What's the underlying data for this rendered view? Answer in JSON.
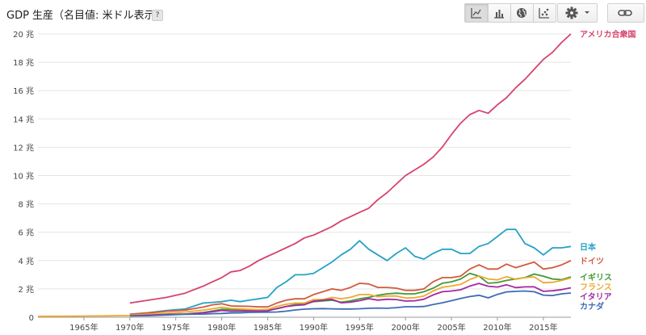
{
  "header": {
    "title": "GDP 生産（名目値: 米ドル表示）",
    "help": "?",
    "view_buttons": [
      {
        "name": "line-chart-view-button",
        "icon": "line-chart-icon",
        "active": true
      },
      {
        "name": "bar-chart-view-button",
        "icon": "bar-chart-icon",
        "active": false
      },
      {
        "name": "map-view-button",
        "icon": "globe-icon",
        "active": false
      },
      {
        "name": "scatter-view-button",
        "icon": "scatter-plot-icon",
        "active": false
      }
    ],
    "settings_icon": "gear-icon",
    "link_icon": "link-icon"
  },
  "chart_data": {
    "type": "line",
    "title": "GDP 生産（名目値: 米ドル表示）",
    "ylim": [
      0,
      20
    ],
    "xlim": [
      1960,
      2018
    ],
    "yticks": [
      0,
      2,
      4,
      6,
      8,
      10,
      12,
      14,
      16,
      18,
      20
    ],
    "ytick_labels": [
      "0",
      "2 兆",
      "4 兆",
      "6 兆",
      "8 兆",
      "10 兆",
      "12 兆",
      "14 兆",
      "16 兆",
      "18 兆",
      "20 兆"
    ],
    "xticks": [
      1965,
      1970,
      1975,
      1980,
      1985,
      1990,
      1995,
      2000,
      2005,
      2010,
      2015
    ],
    "xtick_labels": [
      "1965年",
      "1970年",
      "1975年",
      "1980年",
      "1985年",
      "1990年",
      "1995年",
      "2000年",
      "2005年",
      "2010年",
      "2015年"
    ],
    "grid": "horizontal",
    "legend": "right",
    "series": [
      {
        "name": "アメリカ合衆国",
        "color": "#d6446c",
        "x": [
          1970,
          1972,
          1974,
          1976,
          1978,
          1979,
          1980,
          1981,
          1982,
          1983,
          1984,
          1985,
          1986,
          1987,
          1988,
          1989,
          1990,
          1991,
          1992,
          1993,
          1994,
          1995,
          1996,
          1997,
          1998,
          1999,
          2000,
          2001,
          2002,
          2003,
          2004,
          2005,
          2006,
          2007,
          2008,
          2009,
          2010,
          2011,
          2012,
          2013,
          2014,
          2015,
          2016,
          2017,
          2018
        ],
        "y": [
          1.0,
          1.2,
          1.4,
          1.7,
          2.2,
          2.5,
          2.8,
          3.2,
          3.3,
          3.6,
          4.0,
          4.3,
          4.6,
          4.9,
          5.2,
          5.6,
          5.8,
          6.1,
          6.4,
          6.8,
          7.1,
          7.4,
          7.7,
          8.3,
          8.8,
          9.4,
          10.0,
          10.4,
          10.8,
          11.3,
          12.0,
          12.9,
          13.7,
          14.3,
          14.6,
          14.4,
          15.0,
          15.5,
          16.2,
          16.8,
          17.5,
          18.2,
          18.7,
          19.4,
          20.0
        ]
      },
      {
        "name": "日本",
        "color": "#25a3c3",
        "x": [
          1970,
          1972,
          1974,
          1976,
          1978,
          1979,
          1980,
          1981,
          1982,
          1983,
          1984,
          1985,
          1986,
          1987,
          1988,
          1989,
          1990,
          1991,
          1992,
          1993,
          1994,
          1995,
          1996,
          1997,
          1998,
          1999,
          2000,
          2001,
          2002,
          2003,
          2004,
          2005,
          2006,
          2007,
          2008,
          2009,
          2010,
          2011,
          2012,
          2013,
          2014,
          2015,
          2016,
          2017,
          2018
        ],
        "y": [
          0.21,
          0.32,
          0.48,
          0.58,
          1.0,
          1.05,
          1.1,
          1.2,
          1.1,
          1.2,
          1.3,
          1.4,
          2.1,
          2.5,
          3.0,
          3.0,
          3.1,
          3.5,
          3.9,
          4.4,
          4.8,
          5.4,
          4.8,
          4.4,
          4.0,
          4.5,
          4.9,
          4.3,
          4.1,
          4.5,
          4.8,
          4.8,
          4.5,
          4.5,
          5.0,
          5.2,
          5.7,
          6.2,
          6.2,
          5.2,
          4.9,
          4.4,
          4.9,
          4.9,
          5.0
        ]
      },
      {
        "name": "ドイツ",
        "color": "#d25a3e",
        "x": [
          1970,
          1972,
          1974,
          1976,
          1978,
          1979,
          1980,
          1981,
          1982,
          1983,
          1984,
          1985,
          1986,
          1987,
          1988,
          1989,
          1990,
          1991,
          1992,
          1993,
          1994,
          1995,
          1996,
          1997,
          1998,
          1999,
          2000,
          2001,
          2002,
          2003,
          2004,
          2005,
          2006,
          2007,
          2008,
          2009,
          2010,
          2011,
          2012,
          2013,
          2014,
          2015,
          2016,
          2017,
          2018
        ],
        "y": [
          0.21,
          0.3,
          0.42,
          0.5,
          0.72,
          0.88,
          0.95,
          0.8,
          0.78,
          0.77,
          0.73,
          0.73,
          1.0,
          1.2,
          1.3,
          1.3,
          1.6,
          1.8,
          2.0,
          1.9,
          2.1,
          2.4,
          2.35,
          2.1,
          2.1,
          2.05,
          1.9,
          1.9,
          2.0,
          2.5,
          2.8,
          2.8,
          2.9,
          3.4,
          3.7,
          3.4,
          3.4,
          3.75,
          3.5,
          3.7,
          3.9,
          3.4,
          3.5,
          3.7,
          4.0
        ]
      },
      {
        "name": "イギリス",
        "color": "#3f9a36",
        "x": [
          1970,
          1972,
          1974,
          1976,
          1978,
          1979,
          1980,
          1981,
          1982,
          1983,
          1984,
          1985,
          1986,
          1987,
          1988,
          1989,
          1990,
          1991,
          1992,
          1993,
          1994,
          1995,
          1996,
          1997,
          1998,
          1999,
          2000,
          2001,
          2002,
          2003,
          2004,
          2005,
          2006,
          2007,
          2008,
          2009,
          2010,
          2011,
          2012,
          2013,
          2014,
          2015,
          2016,
          2017,
          2018
        ],
        "y": [
          0.13,
          0.17,
          0.2,
          0.23,
          0.33,
          0.44,
          0.56,
          0.54,
          0.52,
          0.49,
          0.46,
          0.49,
          0.6,
          0.75,
          0.9,
          0.93,
          1.1,
          1.15,
          1.2,
          1.06,
          1.15,
          1.3,
          1.4,
          1.55,
          1.65,
          1.7,
          1.65,
          1.65,
          1.8,
          2.05,
          2.4,
          2.5,
          2.7,
          3.1,
          2.9,
          2.4,
          2.45,
          2.6,
          2.7,
          2.8,
          3.05,
          2.9,
          2.7,
          2.65,
          2.85
        ]
      },
      {
        "name": "フランス",
        "color": "#f0a830",
        "x": [
          1970,
          1972,
          1974,
          1976,
          1978,
          1979,
          1980,
          1981,
          1982,
          1983,
          1984,
          1985,
          1986,
          1987,
          1988,
          1989,
          1990,
          1991,
          1992,
          1993,
          1994,
          1995,
          1996,
          1997,
          1998,
          1999,
          2000,
          2001,
          2002,
          2003,
          2004,
          2005,
          2006,
          2007,
          2008,
          2009,
          2010,
          2011,
          2012,
          2013,
          2014,
          2015,
          2016,
          2017,
          2018
        ],
        "y": [
          0.15,
          0.22,
          0.28,
          0.37,
          0.5,
          0.6,
          0.7,
          0.62,
          0.59,
          0.56,
          0.53,
          0.55,
          0.77,
          0.91,
          1.0,
          1.0,
          1.25,
          1.25,
          1.4,
          1.3,
          1.4,
          1.6,
          1.6,
          1.45,
          1.5,
          1.5,
          1.36,
          1.38,
          1.5,
          1.85,
          2.12,
          2.2,
          2.32,
          2.66,
          2.92,
          2.7,
          2.64,
          2.86,
          2.68,
          2.8,
          2.85,
          2.44,
          2.47,
          2.6,
          2.78
        ]
      },
      {
        "name": "イタリア",
        "color": "#a32aa0",
        "x": [
          1970,
          1972,
          1974,
          1976,
          1978,
          1979,
          1980,
          1981,
          1982,
          1983,
          1984,
          1985,
          1986,
          1987,
          1988,
          1989,
          1990,
          1991,
          1992,
          1993,
          1994,
          1995,
          1996,
          1997,
          1998,
          1999,
          2000,
          2001,
          2002,
          2003,
          2004,
          2005,
          2006,
          2007,
          2008,
          2009,
          2010,
          2011,
          2012,
          2013,
          2014,
          2015,
          2016,
          2017,
          2018
        ],
        "y": [
          0.11,
          0.14,
          0.2,
          0.22,
          0.32,
          0.39,
          0.48,
          0.43,
          0.43,
          0.44,
          0.44,
          0.45,
          0.62,
          0.76,
          0.83,
          0.88,
          1.14,
          1.2,
          1.27,
          1.02,
          1.06,
          1.17,
          1.31,
          1.21,
          1.27,
          1.25,
          1.14,
          1.16,
          1.27,
          1.57,
          1.8,
          1.85,
          1.94,
          2.2,
          2.39,
          2.19,
          2.13,
          2.29,
          2.09,
          2.14,
          2.15,
          1.83,
          1.87,
          1.95,
          2.08
        ]
      },
      {
        "name": "カナダ",
        "color": "#3f6bb4",
        "x": [
          1970,
          1972,
          1974,
          1976,
          1978,
          1979,
          1980,
          1981,
          1982,
          1983,
          1984,
          1985,
          1986,
          1987,
          1988,
          1989,
          1990,
          1991,
          1992,
          1993,
          1994,
          1995,
          1996,
          1997,
          1998,
          1999,
          2000,
          2001,
          2002,
          2003,
          2004,
          2005,
          2006,
          2007,
          2008,
          2009,
          2010,
          2011,
          2012,
          2013,
          2014,
          2015,
          2016,
          2017,
          2018
        ],
        "y": [
          0.09,
          0.11,
          0.16,
          0.21,
          0.22,
          0.25,
          0.27,
          0.3,
          0.31,
          0.34,
          0.35,
          0.36,
          0.37,
          0.43,
          0.51,
          0.57,
          0.6,
          0.61,
          0.59,
          0.58,
          0.58,
          0.6,
          0.63,
          0.65,
          0.63,
          0.68,
          0.74,
          0.74,
          0.76,
          0.9,
          1.02,
          1.17,
          1.32,
          1.46,
          1.55,
          1.37,
          1.61,
          1.79,
          1.83,
          1.85,
          1.8,
          1.56,
          1.53,
          1.65,
          1.71
        ]
      },
      {
        "name": "",
        "color": "#f0a830",
        "x": [
          1960,
          1962,
          1964,
          1966,
          1968,
          1970
        ],
        "y": [
          0.06,
          0.07,
          0.08,
          0.09,
          0.1,
          0.12
        ]
      }
    ]
  }
}
